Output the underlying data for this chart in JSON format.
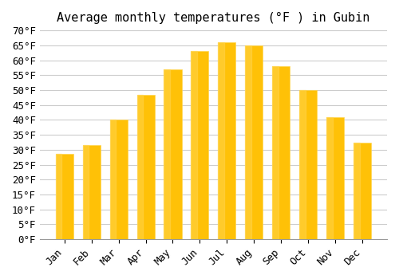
{
  "title": "Average monthly temperatures (°F ) in Gubin",
  "months": [
    "Jan",
    "Feb",
    "Mar",
    "Apr",
    "May",
    "Jun",
    "Jul",
    "Aug",
    "Sep",
    "Oct",
    "Nov",
    "Dec"
  ],
  "values": [
    28.5,
    31.5,
    40.0,
    48.5,
    57.0,
    63.0,
    66.0,
    65.0,
    58.0,
    50.0,
    41.0,
    32.5
  ],
  "bar_color_top": "#FFC107",
  "bar_color_bottom": "#FFD54F",
  "ylim": [
    0,
    70
  ],
  "ytick_step": 5,
  "background_color": "#ffffff",
  "grid_color": "#cccccc",
  "title_fontsize": 11,
  "tick_fontsize": 9
}
